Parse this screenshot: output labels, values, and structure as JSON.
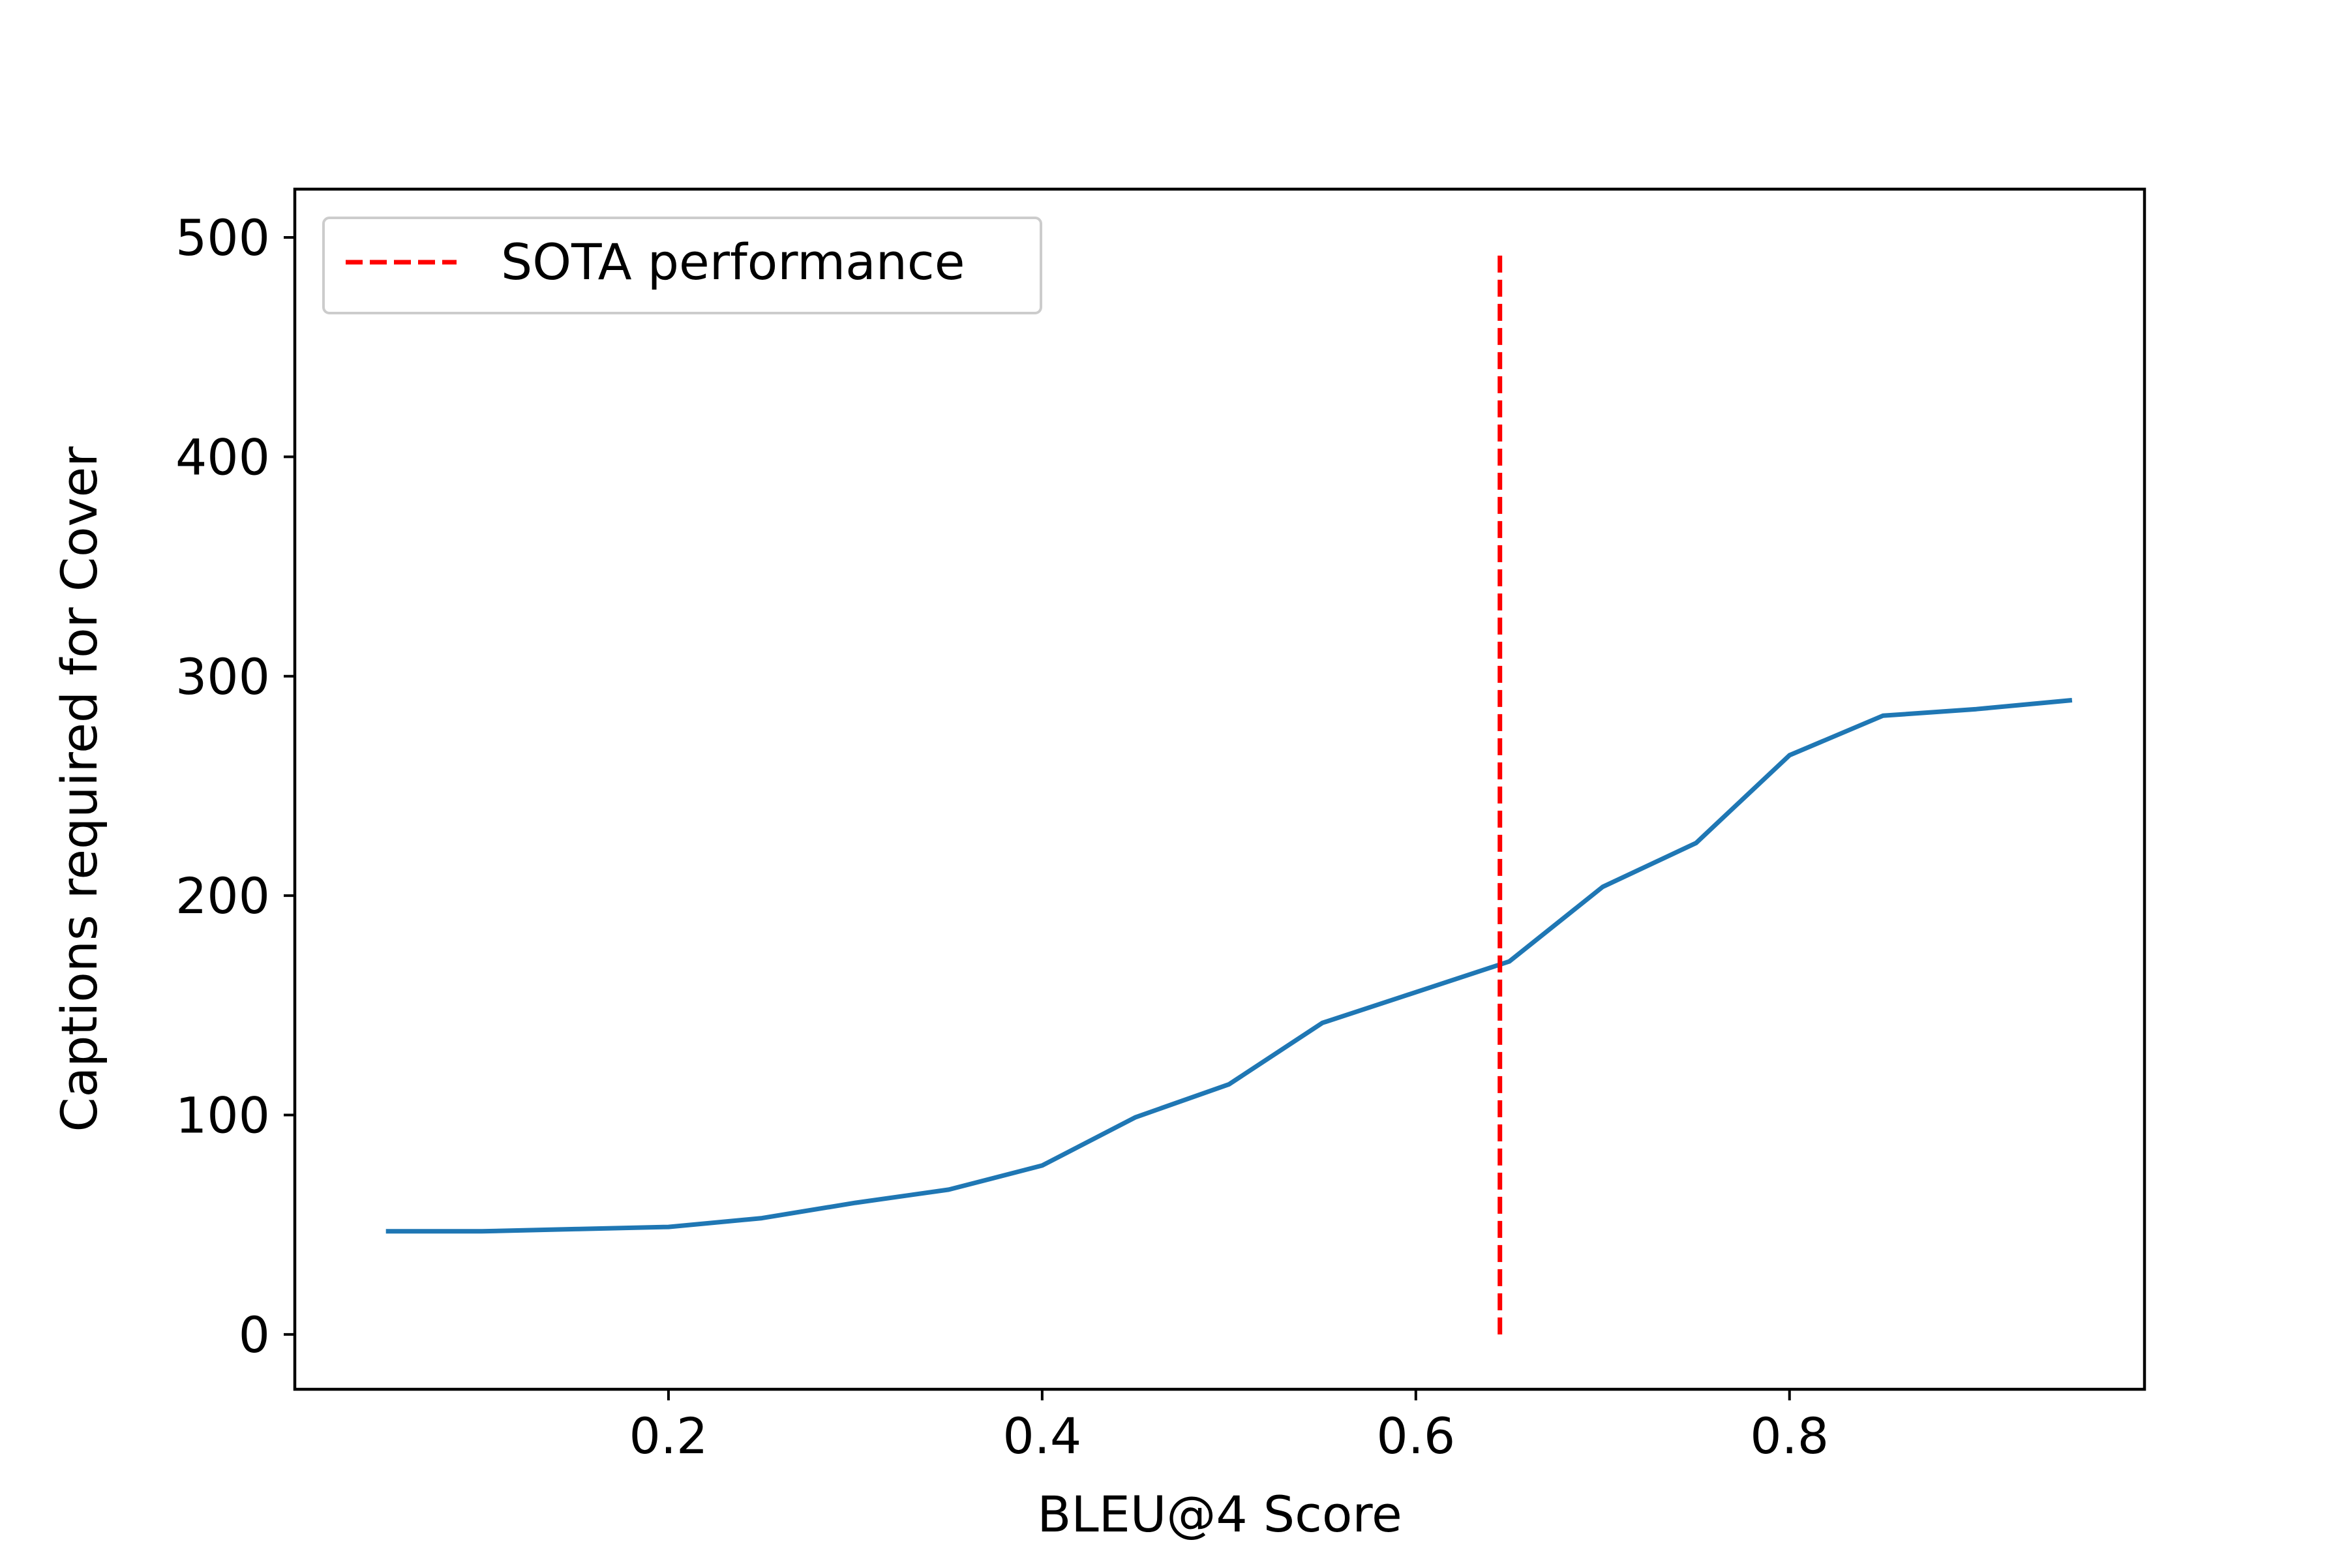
{
  "chart_data": {
    "type": "line",
    "title": "",
    "xlabel": "BLEU@4 Score",
    "ylabel": "Captions required for Cover",
    "xlim": [
      0.0,
      0.99
    ],
    "ylim": [
      -25,
      522
    ],
    "xticks": [
      0.2,
      0.4,
      0.6,
      0.8
    ],
    "xtick_labels": [
      "0.2",
      "0.4",
      "0.6",
      "0.8"
    ],
    "yticks": [
      0,
      100,
      200,
      300,
      400,
      500
    ],
    "ytick_labels": [
      "0",
      "100",
      "200",
      "300",
      "400",
      "500"
    ],
    "grid": false,
    "legend_position": "upper-left",
    "series": [
      {
        "name": "",
        "color": "#1f77b4",
        "x": [
          0.05,
          0.1,
          0.15,
          0.2,
          0.25,
          0.3,
          0.35,
          0.4,
          0.45,
          0.5,
          0.55,
          0.6,
          0.65,
          0.7,
          0.75,
          0.8,
          0.85,
          0.9,
          0.95
        ],
        "y": [
          47,
          47,
          48,
          49,
          53,
          60,
          66,
          77,
          99,
          114,
          142,
          156,
          170,
          204,
          224,
          264,
          282,
          285,
          289
        ]
      }
    ],
    "reference_lines": [
      {
        "name": "SOTA performance",
        "orientation": "vertical",
        "x": 0.645,
        "y_range": [
          0,
          493
        ],
        "color": "#ff0000",
        "style": "dashed"
      }
    ]
  }
}
